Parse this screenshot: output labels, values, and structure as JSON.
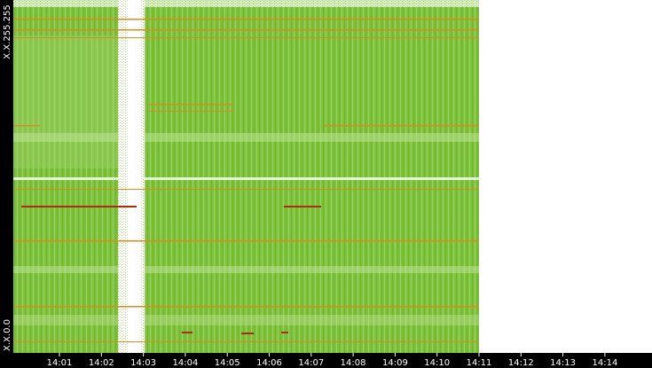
{
  "chart_data": {
    "type": "heatmap",
    "categories": [
      "14:01",
      "14:02",
      "14:03",
      "14:04",
      "14:05",
      "14:06",
      "14:07",
      "14:08",
      "14:09",
      "14:10",
      "14:11",
      "14:12",
      "14:13",
      "14:14"
    ],
    "y_labels": [
      "X.X.255.255",
      "X.X.0.0"
    ]
  }
}
